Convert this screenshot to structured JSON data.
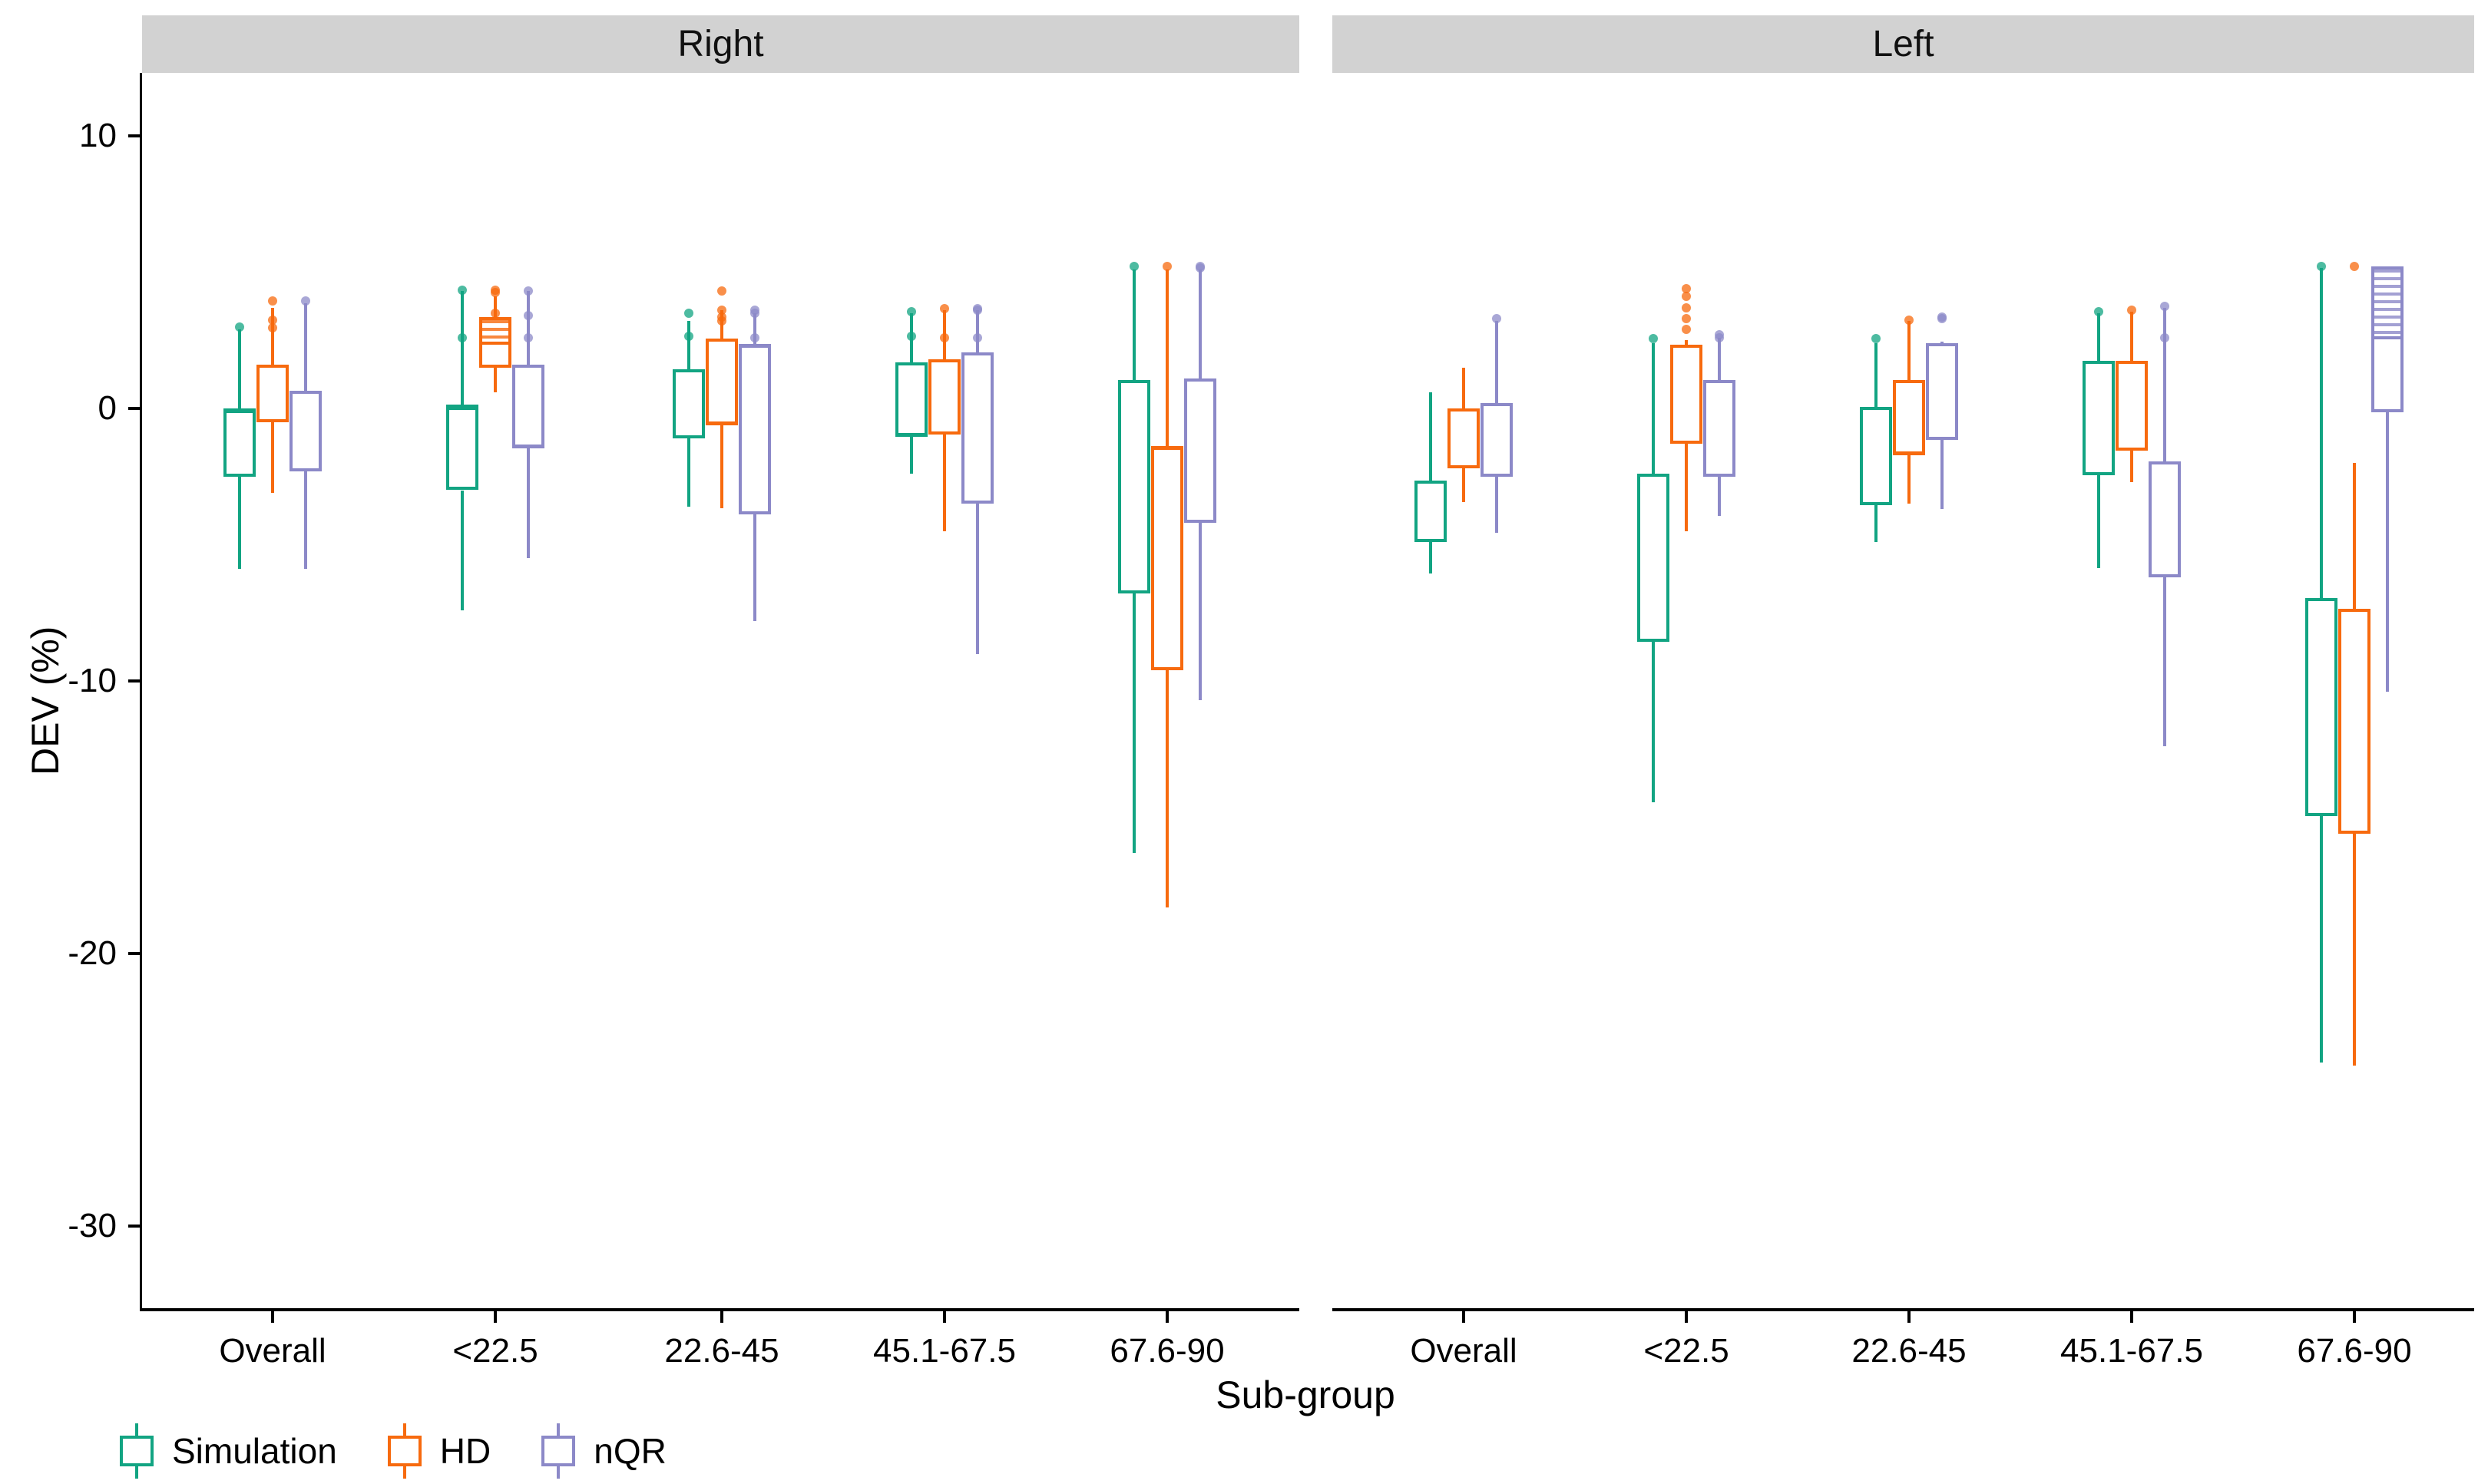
{
  "figure_kind": "faceted grouped boxplot",
  "facet_labels": [
    "Right",
    "Left"
  ],
  "axes": {
    "y": {
      "label": "DEV (%)",
      "tick_values": [
        10,
        0,
        -10,
        -20,
        -30
      ],
      "tick_labels": [
        "10",
        "0",
        "-10",
        "-20",
        "-30"
      ],
      "range_hint": [
        -33,
        12.3
      ]
    },
    "x": {
      "label": "Sub-group",
      "categories": [
        "Overall",
        "<22.5",
        "22.6-45",
        "45.1-67.5",
        "67.6-90"
      ]
    }
  },
  "legend": {
    "items": [
      {
        "label": "Simulation",
        "series": "Simulation",
        "color": "#12a482"
      },
      {
        "label": "HD",
        "series": "HD",
        "color": "#f76a0e"
      },
      {
        "label": "nQR",
        "series": "nQR",
        "color": "#8c89c8"
      }
    ]
  },
  "colors": {
    "Simulation": "#12a482",
    "HD": "#f76a0e",
    "nQR": "#8c89c8",
    "strip_bg": "#d2d2d2",
    "axis": "#000000"
  },
  "chart_data": {
    "type": "boxplot",
    "ylabel": "DEV (%)",
    "xlabel": "Sub-group",
    "ylim": [
      -33,
      12.3
    ],
    "grid": false,
    "legend_position": "bottom-left",
    "facets": [
      {
        "name": "Right",
        "groups": [
          {
            "category": "Overall",
            "boxes": [
              {
                "series": "Simulation",
                "whisker_low": -5.9,
                "q1": -2.5,
                "median": -0.1,
                "q3": 0.0,
                "whisker_high": 2.9,
                "outliers": [
                  3.0
                ],
                "hatch_to": null
              },
              {
                "series": "HD",
                "whisker_low": -3.1,
                "q1": -0.5,
                "median": -0.45,
                "q3": 1.6,
                "whisker_high": 3.7,
                "outliers": [
                  3.95,
                  3.25,
                  2.95
                ],
                "hatch_to": null
              },
              {
                "series": "nQR",
                "whisker_low": -5.9,
                "q1": -2.3,
                "median": -2.25,
                "q3": 0.65,
                "whisker_high": 3.85,
                "outliers": [
                  3.95
                ],
                "hatch_to": null
              }
            ]
          },
          {
            "category": "<22.5",
            "boxes": [
              {
                "series": "Simulation",
                "whisker_low": -7.4,
                "q1": -3.0,
                "median": 0.0,
                "q3": 0.15,
                "whisker_high": 4.3,
                "outliers": [
                  4.35,
                  2.6
                ],
                "hatch_to": null
              },
              {
                "series": "HD",
                "whisker_low": 0.6,
                "q1": 1.5,
                "median": 2.4,
                "q3": 3.35,
                "whisker_high": 4.1,
                "outliers": [
                  4.35,
                  4.25,
                  3.5
                ],
                "hatch_to": 2.4
              },
              {
                "series": "nQR",
                "whisker_low": -5.5,
                "q1": -1.45,
                "median": -1.4,
                "q3": 1.6,
                "whisker_high": 4.3,
                "outliers": [
                  4.3,
                  3.4,
                  2.6
                ],
                "hatch_to": null
              }
            ]
          },
          {
            "category": "22.6-45",
            "boxes": [
              {
                "series": "Simulation",
                "whisker_low": -3.6,
                "q1": -1.1,
                "median": -1.05,
                "q3": 1.45,
                "whisker_high": 3.2,
                "outliers": [
                  3.5,
                  2.65
                ],
                "hatch_to": null
              },
              {
                "series": "HD",
                "whisker_low": -3.65,
                "q1": -0.6,
                "median": -0.55,
                "q3": 2.55,
                "whisker_high": 3.6,
                "outliers": [
                  4.3,
                  3.6,
                  3.35,
                  3.2
                ],
                "hatch_to": null
              },
              {
                "series": "nQR",
                "whisker_low": -7.8,
                "q1": -3.9,
                "median": 2.3,
                "q3": 2.35,
                "whisker_high": 3.5,
                "outliers": [
                  3.6,
                  3.5,
                  2.6
                ],
                "hatch_to": null
              }
            ]
          },
          {
            "category": "45.1-67.5",
            "boxes": [
              {
                "series": "Simulation",
                "whisker_low": -2.4,
                "q1": -1.05,
                "median": -0.95,
                "q3": 1.7,
                "whisker_high": 3.5,
                "outliers": [
                  3.55,
                  2.65
                ],
                "hatch_to": null
              },
              {
                "series": "HD",
                "whisker_low": -4.5,
                "q1": -0.95,
                "median": -0.9,
                "q3": 1.8,
                "whisker_high": 3.6,
                "outliers": [
                  3.65,
                  2.6
                ],
                "hatch_to": null
              },
              {
                "series": "nQR",
                "whisker_low": -9.0,
                "q1": -3.5,
                "median": 2.0,
                "q3": 2.05,
                "whisker_high": 3.6,
                "outliers": [
                  3.65,
                  3.6,
                  2.6
                ],
                "hatch_to": null
              }
            ]
          },
          {
            "category": "67.6-90",
            "boxes": [
              {
                "series": "Simulation",
                "whisker_low": -16.3,
                "q1": -6.8,
                "median": 1.0,
                "q3": 1.05,
                "whisker_high": 5.1,
                "outliers": [
                  5.2
                ],
                "hatch_to": null
              },
              {
                "series": "HD",
                "whisker_low": -18.3,
                "q1": -9.6,
                "median": -1.45,
                "q3": -1.4,
                "whisker_high": 5.1,
                "outliers": [
                  5.2
                ],
                "hatch_to": null
              },
              {
                "series": "nQR",
                "whisker_low": -10.7,
                "q1": -4.2,
                "median": 1.05,
                "q3": 1.1,
                "whisker_high": 5.1,
                "outliers": [
                  5.2,
                  5.15
                ],
                "hatch_to": null
              }
            ]
          }
        ]
      },
      {
        "name": "Left",
        "groups": [
          {
            "category": "Overall",
            "boxes": [
              {
                "series": "Simulation",
                "whisker_low": -6.05,
                "q1": -4.9,
                "median": -4.85,
                "q3": -2.65,
                "whisker_high": 0.6,
                "outliers": [],
                "hatch_to": null
              },
              {
                "series": "HD",
                "whisker_low": -3.45,
                "q1": -2.2,
                "median": -2.15,
                "q3": 0.0,
                "whisker_high": 1.5,
                "outliers": [],
                "hatch_to": null
              },
              {
                "series": "nQR",
                "whisker_low": -4.55,
                "q1": -2.5,
                "median": -2.45,
                "q3": 0.2,
                "whisker_high": 3.2,
                "outliers": [
                  3.3
                ],
                "hatch_to": null
              }
            ]
          },
          {
            "category": "<22.5",
            "boxes": [
              {
                "series": "Simulation",
                "whisker_low": -14.45,
                "q1": -8.55,
                "median": -8.5,
                "q3": -2.4,
                "whisker_high": 2.4,
                "outliers": [
                  2.55
                ],
                "hatch_to": null
              },
              {
                "series": "HD",
                "whisker_low": -4.5,
                "q1": -1.3,
                "median": -1.25,
                "q3": 2.35,
                "whisker_high": 2.5,
                "outliers": [
                  4.4,
                  4.1,
                  3.7,
                  3.3,
                  2.9
                ],
                "hatch_to": null
              },
              {
                "series": "nQR",
                "whisker_low": -3.95,
                "q1": -2.5,
                "median": -2.45,
                "q3": 1.05,
                "whisker_high": 2.6,
                "outliers": [
                  2.7,
                  2.6
                ],
                "hatch_to": null
              }
            ]
          },
          {
            "category": "22.6-45",
            "boxes": [
              {
                "series": "Simulation",
                "whisker_low": -4.9,
                "q1": -3.55,
                "median": 0.0,
                "q3": 0.05,
                "whisker_high": 2.4,
                "outliers": [
                  2.55
                ],
                "hatch_to": null
              },
              {
                "series": "HD",
                "whisker_low": -3.5,
                "q1": -1.7,
                "median": -1.65,
                "q3": 1.05,
                "whisker_high": 3.2,
                "outliers": [
                  3.25
                ],
                "hatch_to": null
              },
              {
                "series": "nQR",
                "whisker_low": -3.7,
                "q1": -1.15,
                "median": -1.1,
                "q3": 2.4,
                "whisker_high": 2.45,
                "outliers": [
                  3.35,
                  3.3
                ],
                "hatch_to": null
              }
            ]
          },
          {
            "category": "45.1-67.5",
            "boxes": [
              {
                "series": "Simulation",
                "whisker_low": -5.85,
                "q1": -2.45,
                "median": 1.7,
                "q3": 1.75,
                "whisker_high": 3.5,
                "outliers": [
                  3.55
                ],
                "hatch_to": null
              },
              {
                "series": "HD",
                "whisker_low": -2.7,
                "q1": -1.55,
                "median": -1.5,
                "q3": 1.75,
                "whisker_high": 3.55,
                "outliers": [
                  3.6
                ],
                "hatch_to": null
              },
              {
                "series": "nQR",
                "whisker_low": -12.4,
                "q1": -6.2,
                "median": -2.0,
                "q3": -1.95,
                "whisker_high": 3.7,
                "outliers": [
                  3.75,
                  2.6
                ],
                "hatch_to": null
              }
            ]
          },
          {
            "category": "67.6-90",
            "boxes": [
              {
                "series": "Simulation",
                "whisker_low": -24.0,
                "q1": -14.95,
                "median": -7.0,
                "q3": -6.95,
                "whisker_high": 5.15,
                "outliers": [
                  5.2
                ],
                "hatch_to": null
              },
              {
                "series": "HD",
                "whisker_low": -24.1,
                "q1": -15.6,
                "median": -7.4,
                "q3": -7.35,
                "whisker_high": -2.0,
                "outliers": [
                  5.2
                ],
                "hatch_to": null
              },
              {
                "series": "nQR",
                "whisker_low": -10.4,
                "q1": -0.15,
                "median": 2.6,
                "q3": 5.2,
                "whisker_high": 5.2,
                "outliers": [],
                "hatch_to": 2.6
              }
            ]
          }
        ]
      }
    ]
  }
}
